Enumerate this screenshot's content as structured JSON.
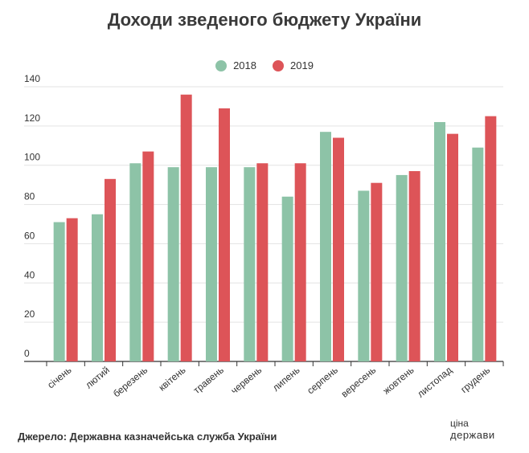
{
  "chart_data": {
    "type": "bar",
    "title": "Доходи зведеного бюджету України",
    "categories": [
      "січень",
      "лютий",
      "березень",
      "квітень",
      "травень",
      "червень",
      "липень",
      "серпень",
      "вересень",
      "жовтень",
      "листопад",
      "грудень"
    ],
    "series": [
      {
        "name": "2018",
        "color": "#8dc3a7",
        "values": [
          71,
          75,
          101,
          99,
          99,
          99,
          84,
          117,
          87,
          95,
          122,
          109
        ]
      },
      {
        "name": "2019",
        "color": "#dd5458",
        "values": [
          73,
          93,
          107,
          136,
          129,
          101,
          101,
          114,
          91,
          97,
          116,
          125
        ]
      }
    ],
    "yticks": [
      0,
      20,
      40,
      60,
      80,
      100,
      120,
      140
    ],
    "ylim": [
      0,
      140
    ],
    "grid": true,
    "legend": "top-center"
  },
  "footer": {
    "source": "Джерело: Державна казначейська служба України",
    "logo_line1": "ціна",
    "logo_line2": "держави"
  }
}
